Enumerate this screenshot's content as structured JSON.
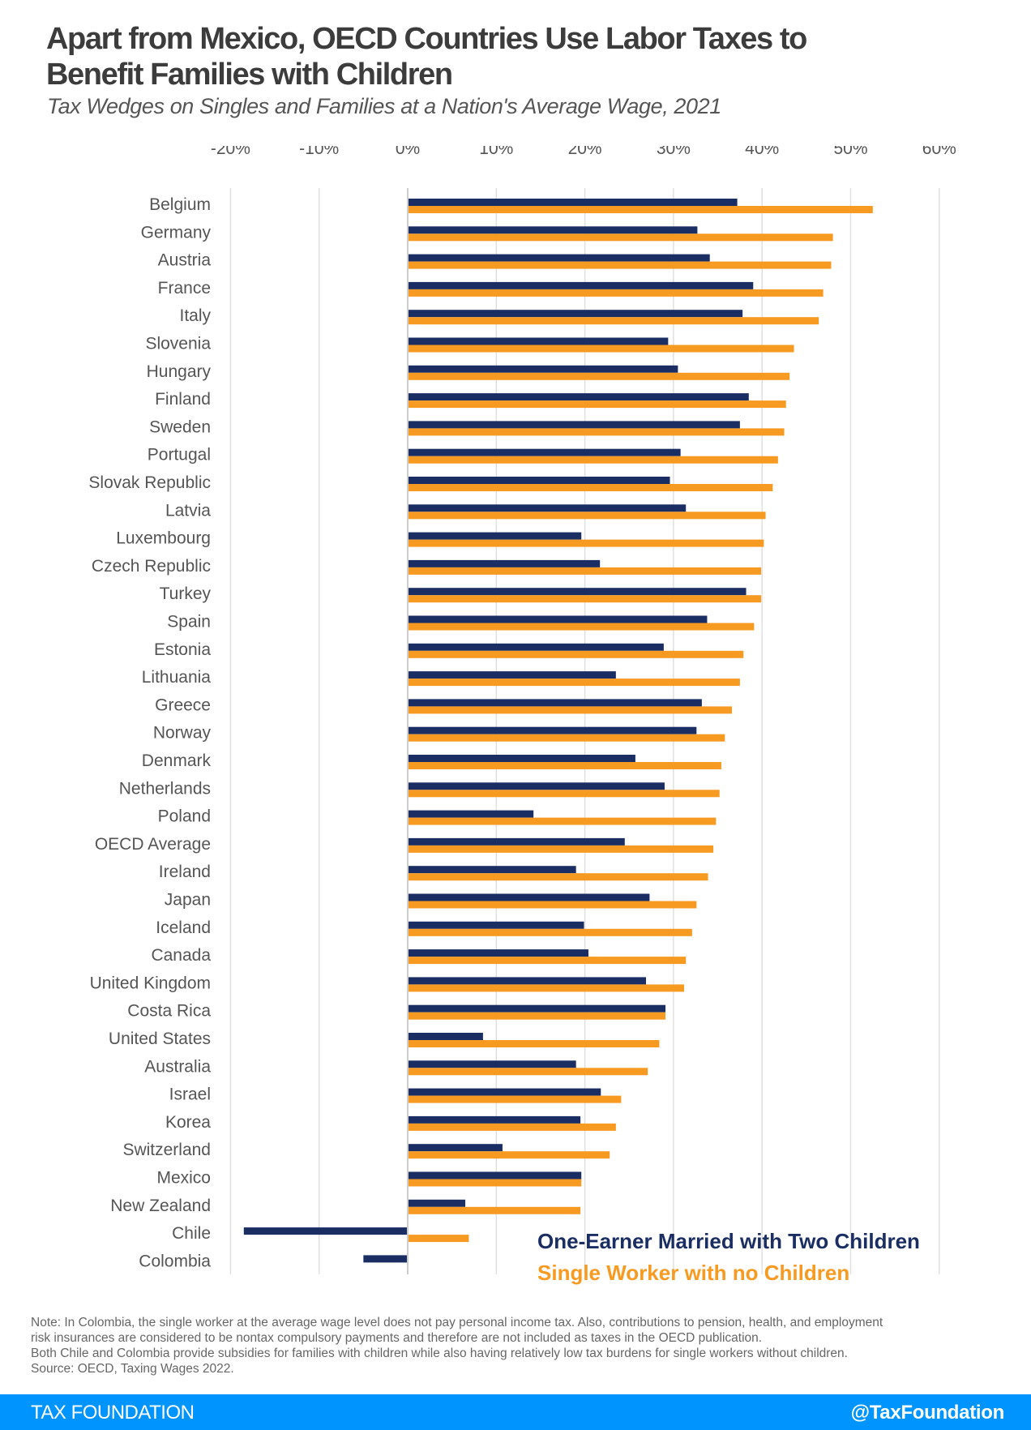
{
  "header": {
    "title_line1": "Apart from Mexico, OECD Countries Use Labor Taxes to",
    "title_line2": "Benefit Families with Children",
    "subtitle": "Tax Wedges on Singles and Families at a Nation's Average Wage, 2021"
  },
  "chart_data": {
    "type": "bar",
    "orientation": "horizontal",
    "title": "Apart from Mexico, OECD Countries Use Labor Taxes to Benefit Families with Children",
    "subtitle": "Tax Wedges on Singles and Families at a Nation's Average Wage, 2021",
    "xlabel": "",
    "ylabel": "",
    "xlim": [
      -20,
      60
    ],
    "x_ticks": [
      -20,
      -10,
      0,
      10,
      20,
      30,
      40,
      50,
      60
    ],
    "x_tick_labels": [
      "-20%",
      "-10%",
      "0%",
      "10%",
      "20%",
      "30%",
      "40%",
      "50%",
      "60%"
    ],
    "grid": true,
    "legend_position": "bottom-right",
    "categories": [
      "Belgium",
      "Germany",
      "Austria",
      "France",
      "Italy",
      "Slovenia",
      "Hungary",
      "Finland",
      "Sweden",
      "Portugal",
      "Slovak Republic",
      "Latvia",
      "Luxembourg",
      "Czech Republic",
      "Turkey",
      "Spain",
      "Estonia",
      "Lithuania",
      "Greece",
      "Norway",
      "Denmark",
      "Netherlands",
      "Poland",
      "OECD Average",
      "Ireland",
      "Japan",
      "Iceland",
      "Canada",
      "United Kingdom",
      "Costa Rica",
      "United States",
      "Australia",
      "Israel",
      "Korea",
      "Switzerland",
      "Mexico",
      "New Zealand",
      "Chile",
      "Colombia"
    ],
    "series": [
      {
        "name": "One-Earner Married with Two Children",
        "color": "#1b2e63",
        "values": [
          37.2,
          32.7,
          34.1,
          39.0,
          37.8,
          29.4,
          30.5,
          38.5,
          37.5,
          30.8,
          29.6,
          31.4,
          19.6,
          21.7,
          38.2,
          33.8,
          28.9,
          23.5,
          33.2,
          32.6,
          25.7,
          29.0,
          14.2,
          24.5,
          19.0,
          27.3,
          19.9,
          20.4,
          26.9,
          29.1,
          8.5,
          19.0,
          21.8,
          19.5,
          10.7,
          19.6,
          6.5,
          -18.5,
          -5.0
        ]
      },
      {
        "name": "Single Worker with no Children",
        "color": "#f79a22",
        "values": [
          52.5,
          48.0,
          47.8,
          46.9,
          46.4,
          43.6,
          43.1,
          42.7,
          42.5,
          41.8,
          41.2,
          40.4,
          40.2,
          39.9,
          39.9,
          39.1,
          37.9,
          37.5,
          36.6,
          35.8,
          35.4,
          35.2,
          34.8,
          34.5,
          33.9,
          32.6,
          32.1,
          31.4,
          31.2,
          29.1,
          28.4,
          27.1,
          24.1,
          23.5,
          22.8,
          19.6,
          19.5,
          6.9,
          0
        ]
      }
    ]
  },
  "notes": {
    "line1": "Note: In Colombia, the single worker at the average wage level does not pay personal income tax. Also, contributions to pension, health, and employment",
    "line2": "risk insurances are considered to be nontax compulsory payments and therefore are not included as taxes in the OECD publication.",
    "line3": "Both Chile and Colombia provide subsidies for families with children while also having relatively low tax burdens for single workers without children.",
    "line4": "Source: OECD, Taxing Wages 2022."
  },
  "footer": {
    "brand": "TAX FOUNDATION",
    "handle": "@TaxFoundation",
    "color": "#0094ff"
  }
}
